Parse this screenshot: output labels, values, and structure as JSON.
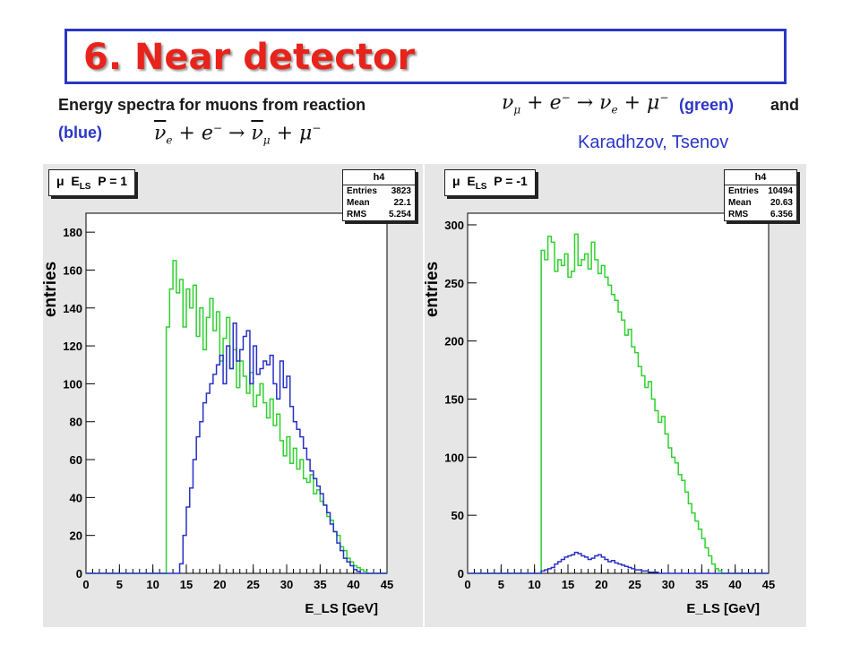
{
  "slide": {
    "title": "6. Near detector",
    "desc_line1": "Energy spectra for muons from reaction",
    "desc_green": "(green)",
    "desc_and": "and",
    "desc_blue": "(blue)",
    "author": "Karadhzov, Tsenov",
    "reaction1": "ν_μ + e⁻ → ν_e + μ⁻",
    "reaction2": "ν̄_e + e⁻ → ν̄_μ + μ⁻"
  },
  "colors": {
    "green": "#2fd12f",
    "blue": "#2830c8",
    "accent": "#e8231b",
    "frame": "#2b36c8"
  },
  "chart_data": [
    {
      "type": "line",
      "title": "μ E_LS P = 1",
      "ylabel": "entries",
      "xlabel": "E_LS [GeV]",
      "xlim": [
        0,
        45
      ],
      "ylim": [
        0,
        190
      ],
      "yticks": [
        0,
        20,
        40,
        60,
        80,
        100,
        120,
        140,
        160,
        180
      ],
      "xticks": [
        0,
        5,
        10,
        15,
        20,
        25,
        30,
        35,
        40,
        45
      ],
      "stats": {
        "name": "h4",
        "Entries": "3823",
        "Mean": "22.1",
        "RMS": "5.254"
      },
      "x_edges_start": 0,
      "bin_width": 0.5,
      "series": [
        {
          "color": "green",
          "values": [
            0,
            0,
            0,
            0,
            0,
            0,
            0,
            0,
            0,
            0,
            0,
            0,
            0,
            0,
            0,
            0,
            0,
            0,
            0,
            0,
            0,
            0,
            0,
            0,
            130,
            150,
            165,
            148,
            155,
            130,
            150,
            140,
            152,
            125,
            140,
            118,
            135,
            145,
            128,
            138,
            112,
            124,
            135,
            108,
            118,
            98,
            112,
            104,
            95,
            106,
            88,
            94,
            100,
            90,
            82,
            92,
            78,
            84,
            70,
            62,
            72,
            58,
            66,
            55,
            60,
            50,
            48,
            52,
            42,
            44,
            38,
            36,
            30,
            28,
            22,
            20,
            14,
            12,
            8,
            6,
            4,
            3,
            2,
            1,
            0,
            0,
            0,
            0,
            0,
            0,
            0,
            0
          ]
        },
        {
          "color": "blue",
          "values": [
            0,
            0,
            0,
            0,
            0,
            0,
            0,
            0,
            0,
            0,
            0,
            0,
            0,
            0,
            0,
            0,
            0,
            0,
            0,
            0,
            0,
            0,
            0,
            0,
            0,
            0,
            0,
            0,
            5,
            20,
            35,
            45,
            60,
            72,
            80,
            90,
            95,
            100,
            105,
            110,
            115,
            100,
            120,
            108,
            132,
            112,
            118,
            125,
            128,
            100,
            120,
            105,
            108,
            112,
            110,
            115,
            100,
            92,
            112,
            98,
            104,
            88,
            80,
            76,
            72,
            66,
            60,
            54,
            50,
            46,
            42,
            36,
            32,
            26,
            22,
            16,
            12,
            8,
            6,
            4,
            2,
            1,
            0,
            0,
            0,
            0,
            0,
            0,
            0,
            0,
            0,
            0
          ]
        }
      ]
    },
    {
      "type": "line",
      "title": "μ E_LS P = -1",
      "ylabel": "entries",
      "xlabel": "E_LS [GeV]",
      "xlim": [
        0,
        45
      ],
      "ylim": [
        0,
        310
      ],
      "yticks": [
        0,
        50,
        100,
        150,
        200,
        250,
        300
      ],
      "xticks": [
        0,
        5,
        10,
        15,
        20,
        25,
        30,
        35,
        40,
        45
      ],
      "stats": {
        "name": "h4",
        "Entries": "10494",
        "Mean": "20.63",
        "RMS": "6.356"
      },
      "x_edges_start": 0,
      "bin_width": 0.5,
      "series": [
        {
          "color": "green",
          "values": [
            0,
            0,
            0,
            0,
            0,
            0,
            0,
            0,
            0,
            0,
            0,
            0,
            0,
            0,
            0,
            0,
            0,
            0,
            0,
            0,
            0,
            0,
            278,
            270,
            290,
            285,
            260,
            270,
            265,
            275,
            255,
            260,
            292,
            265,
            270,
            275,
            262,
            285,
            270,
            258,
            265,
            255,
            248,
            240,
            235,
            225,
            218,
            205,
            210,
            195,
            190,
            178,
            170,
            160,
            165,
            150,
            140,
            130,
            135,
            120,
            108,
            100,
            95,
            85,
            80,
            70,
            60,
            52,
            45,
            38,
            30,
            22,
            15,
            8,
            4,
            2,
            0,
            0,
            0,
            0,
            0,
            0,
            0,
            0,
            0,
            0,
            0,
            0,
            0,
            0,
            0,
            0
          ]
        },
        {
          "color": "blue",
          "values": [
            0,
            0,
            0,
            0,
            0,
            0,
            0,
            0,
            0,
            0,
            0,
            0,
            0,
            0,
            0,
            0,
            0,
            0,
            0,
            0,
            0,
            0,
            2,
            3,
            4,
            5,
            8,
            10,
            12,
            14,
            15,
            16,
            18,
            17,
            15,
            14,
            12,
            13,
            15,
            16,
            14,
            12,
            10,
            11,
            9,
            8,
            7,
            6,
            5,
            4,
            3,
            3,
            2,
            2,
            1,
            1,
            1,
            0,
            0,
            0,
            0,
            0,
            0,
            0,
            0,
            0,
            0,
            0,
            0,
            0,
            0,
            0,
            0,
            0,
            0,
            0,
            0,
            0,
            0,
            0,
            0,
            0,
            0,
            0,
            0,
            0,
            0,
            0,
            0,
            0,
            0,
            0,
            0,
            0,
            0,
            0
          ]
        }
      ]
    }
  ]
}
